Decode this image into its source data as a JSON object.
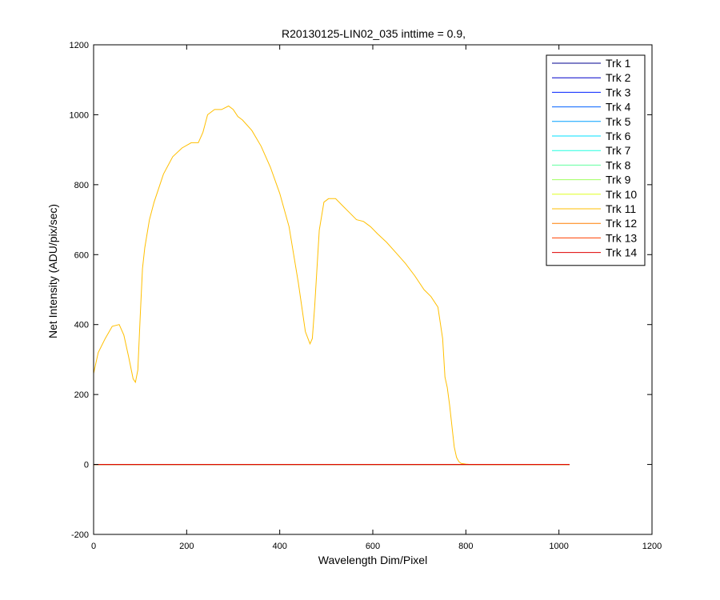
{
  "chart_data": {
    "type": "line",
    "title": "R20130125-LIN02_035 inttime = 0.9,",
    "xlabel": "Wavelength Dim/Pixel",
    "ylabel": "Net Intensity (ADU/pix/sec)",
    "xlim": [
      0,
      1200
    ],
    "ylim": [
      -200,
      1200
    ],
    "xticks": [
      0,
      200,
      400,
      600,
      800,
      1000,
      1200
    ],
    "yticks": [
      -200,
      0,
      200,
      400,
      600,
      800,
      1000,
      1200
    ],
    "xtick_labels": [
      "0",
      "200",
      "400",
      "600",
      "800",
      "1000",
      "1200"
    ],
    "ytick_labels": [
      "-200",
      "0",
      "200",
      "400",
      "600",
      "800",
      "1000",
      "1200"
    ],
    "grid": false,
    "legend_position": "top-right",
    "series": [
      {
        "name": "Trk 1",
        "color": "#00008f",
        "x": [
          0,
          1023
        ],
        "y": [
          0,
          0
        ]
      },
      {
        "name": "Trk 2",
        "color": "#0000c8",
        "x": [
          0,
          1023
        ],
        "y": [
          0,
          0
        ]
      },
      {
        "name": "Trk 3",
        "color": "#0020ff",
        "x": [
          0,
          1023
        ],
        "y": [
          0,
          0
        ]
      },
      {
        "name": "Trk 4",
        "color": "#0060ff",
        "x": [
          0,
          1023
        ],
        "y": [
          0,
          0
        ]
      },
      {
        "name": "Trk 5",
        "color": "#00a0ff",
        "x": [
          0,
          1023
        ],
        "y": [
          0,
          0
        ]
      },
      {
        "name": "Trk 6",
        "color": "#00e0ff",
        "x": [
          0,
          1023
        ],
        "y": [
          0,
          0
        ]
      },
      {
        "name": "Trk 7",
        "color": "#20ffdf",
        "x": [
          0,
          1023
        ],
        "y": [
          0,
          0
        ]
      },
      {
        "name": "Trk 8",
        "color": "#60ff9f",
        "x": [
          0,
          1023
        ],
        "y": [
          0,
          0
        ]
      },
      {
        "name": "Trk 9",
        "color": "#a0ff5f",
        "x": [
          0,
          1023
        ],
        "y": [
          0,
          0
        ]
      },
      {
        "name": "Trk 10",
        "color": "#dfff20",
        "x": [
          0,
          1023
        ],
        "y": [
          0,
          0
        ]
      },
      {
        "name": "Trk 11",
        "color": "#ffbf00",
        "x": [
          0,
          10,
          25,
          40,
          55,
          65,
          75,
          85,
          90,
          95,
          100,
          105,
          110,
          120,
          130,
          150,
          170,
          190,
          210,
          225,
          235,
          245,
          260,
          275,
          290,
          300,
          310,
          320,
          340,
          360,
          380,
          400,
          420,
          440,
          455,
          465,
          470,
          475,
          485,
          495,
          505,
          520,
          535,
          550,
          565,
          580,
          595,
          610,
          630,
          650,
          670,
          690,
          710,
          725,
          740,
          750,
          755,
          760,
          765,
          770,
          775,
          780,
          785,
          790,
          800,
          810,
          820,
          1023
        ],
        "y": [
          260,
          320,
          360,
          395,
          400,
          370,
          310,
          245,
          235,
          270,
          420,
          560,
          620,
          700,
          750,
          830,
          880,
          905,
          920,
          920,
          950,
          1000,
          1015,
          1015,
          1025,
          1015,
          995,
          985,
          955,
          910,
          850,
          775,
          680,
          520,
          380,
          345,
          360,
          450,
          670,
          750,
          760,
          760,
          740,
          720,
          700,
          695,
          680,
          660,
          635,
          605,
          575,
          540,
          500,
          480,
          450,
          360,
          250,
          220,
          170,
          110,
          50,
          20,
          8,
          3,
          1,
          0,
          0,
          0
        ]
      },
      {
        "name": "Trk 12",
        "color": "#ff7f00",
        "x": [
          0,
          1023
        ],
        "y": [
          0,
          0
        ]
      },
      {
        "name": "Trk 13",
        "color": "#ff4000",
        "x": [
          0,
          1023
        ],
        "y": [
          0,
          0
        ]
      },
      {
        "name": "Trk 14",
        "color": "#df0000",
        "x": [
          0,
          1023
        ],
        "y": [
          0,
          0
        ]
      }
    ]
  }
}
